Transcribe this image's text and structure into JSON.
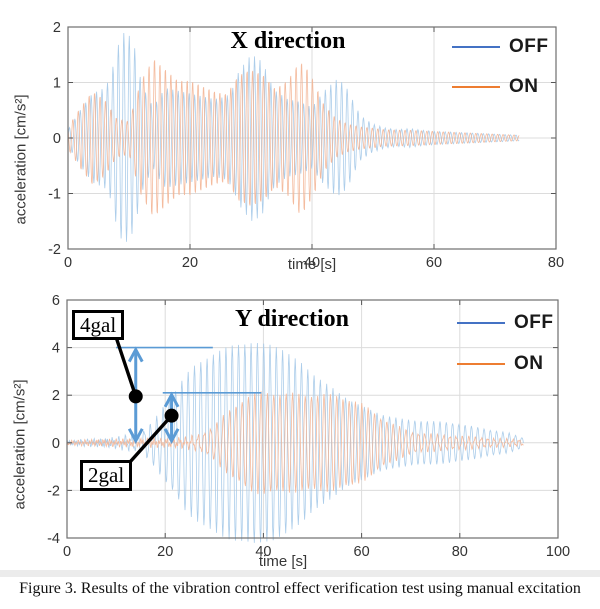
{
  "caption": "Figure 3. Results of the vibration control effect verification test using manual excitation",
  "colors": {
    "off_waveform": "#A3C8E8",
    "on_waveform": "#F3B493",
    "off_legend": "#4472C4",
    "on_legend": "#ED7D31",
    "annotation_blue": "#5B9BD5",
    "grid": "#dcdcdc",
    "axis": "#6f6f6f"
  },
  "charts": [
    {
      "id": "x-direction",
      "title": "X direction",
      "xlabel": "time [s]",
      "ylabel": "acceleration [cm/s²]",
      "legend": [
        {
          "label": "OFF",
          "color": "#4472C4"
        },
        {
          "label": "ON",
          "color": "#ED7D31"
        }
      ],
      "chart_data": {
        "type": "line",
        "x_range": [
          0,
          80
        ],
        "y_range": [
          -2,
          2
        ],
        "x_ticks": [
          0,
          20,
          40,
          60,
          80
        ],
        "y_ticks": [
          -2,
          -1,
          0,
          1,
          2
        ],
        "grid": true,
        "series": [
          {
            "name": "OFF",
            "color": "#A3C8E8",
            "freq_hz": 1.12,
            "phase": 0,
            "end_s": 74,
            "amplitude_envelope": [
              [
                0,
                0.15
              ],
              [
                2,
                0.5
              ],
              [
                4,
                0.8
              ],
              [
                6,
                0.9
              ],
              [
                7,
                1.1
              ],
              [
                8,
                1.6
              ],
              [
                9,
                1.9
              ],
              [
                10,
                1.85
              ],
              [
                11,
                1.6
              ],
              [
                12,
                1.0
              ],
              [
                13,
                0.75
              ],
              [
                14,
                0.55
              ],
              [
                15,
                0.75
              ],
              [
                16,
                0.9
              ],
              [
                18,
                0.85
              ],
              [
                20,
                0.8
              ],
              [
                22,
                0.75
              ],
              [
                24,
                0.7
              ],
              [
                26,
                0.75
              ],
              [
                27,
                0.9
              ],
              [
                28,
                1.2
              ],
              [
                30,
                1.5
              ],
              [
                31,
                1.45
              ],
              [
                32,
                1.35
              ],
              [
                33,
                1.05
              ],
              [
                34,
                0.85
              ],
              [
                36,
                0.7
              ],
              [
                38,
                0.65
              ],
              [
                40,
                0.55
              ],
              [
                42,
                0.85
              ],
              [
                44,
                1.05
              ],
              [
                45,
                1.0
              ],
              [
                46,
                0.85
              ],
              [
                47,
                0.6
              ],
              [
                48,
                0.4
              ],
              [
                50,
                0.25
              ],
              [
                52,
                0.18
              ],
              [
                54,
                0.15
              ],
              [
                56,
                0.17
              ],
              [
                58,
                0.14
              ],
              [
                60,
                0.12
              ],
              [
                64,
                0.1
              ],
              [
                68,
                0.08
              ],
              [
                72,
                0.06
              ],
              [
                74,
                0.05
              ]
            ]
          },
          {
            "name": "ON",
            "color": "#F3B493",
            "freq_hz": 1.12,
            "phase": 2.3,
            "end_s": 74,
            "amplitude_envelope": [
              [
                0,
                0.2
              ],
              [
                2,
                0.55
              ],
              [
                4,
                0.85
              ],
              [
                6,
                0.7
              ],
              [
                8,
                0.35
              ],
              [
                10,
                0.3
              ],
              [
                12,
                1.05
              ],
              [
                14,
                1.45
              ],
              [
                16,
                1.25
              ],
              [
                18,
                1.05
              ],
              [
                20,
                1.05
              ],
              [
                22,
                0.95
              ],
              [
                24,
                0.85
              ],
              [
                26,
                0.8
              ],
              [
                28,
                1.15
              ],
              [
                30,
                1.25
              ],
              [
                32,
                1.15
              ],
              [
                34,
                0.9
              ],
              [
                36,
                1.05
              ],
              [
                38,
                1.4
              ],
              [
                39,
                1.3
              ],
              [
                40,
                1.1
              ],
              [
                42,
                0.6
              ],
              [
                44,
                0.35
              ],
              [
                46,
                0.25
              ],
              [
                48,
                0.2
              ],
              [
                50,
                0.18
              ],
              [
                52,
                0.15
              ],
              [
                56,
                0.14
              ],
              [
                60,
                0.12
              ],
              [
                64,
                0.1
              ],
              [
                68,
                0.08
              ],
              [
                72,
                0.06
              ],
              [
                74,
                0.05
              ]
            ]
          }
        ]
      }
    },
    {
      "id": "y-direction",
      "title": "Y direction",
      "xlabel": "time [s]",
      "ylabel": "acceleration [cm/s²]",
      "legend": [
        {
          "label": "OFF",
          "color": "#4472C4"
        },
        {
          "label": "ON",
          "color": "#ED7D31"
        }
      ],
      "annotations": {
        "labels": [
          {
            "text": "4gal"
          },
          {
            "text": "2gal"
          }
        ],
        "measurements": [
          {
            "label": "4gal",
            "value_gal": 4,
            "arrow_x_s": 14,
            "arrow_from_value": 4.0,
            "arrow_to_value": 0,
            "hline_value": 4.0,
            "hline_span_s": [
              10,
              29.7
            ],
            "dot": [
              14,
              1.95
            ]
          },
          {
            "label": "2gal",
            "value_gal": 2,
            "arrow_x_s": 21.3,
            "arrow_from_value": 2.1,
            "arrow_to_value": 0,
            "hline_value": 2.1,
            "hline_span_s": [
              19.5,
              39.6
            ],
            "dot": [
              21.3,
              1.14
            ]
          }
        ]
      },
      "chart_data": {
        "type": "line",
        "x_range": [
          0,
          100
        ],
        "y_range": [
          -4,
          6
        ],
        "x_ticks": [
          0,
          20,
          40,
          60,
          80,
          100
        ],
        "y_ticks": [
          -4,
          -2,
          0,
          2,
          4,
          6
        ],
        "grid": true,
        "series": [
          {
            "name": "OFF",
            "color": "#A3C8E8",
            "freq_hz": 0.78,
            "phase": 0,
            "end_s": 93,
            "amplitude_envelope": [
              [
                0,
                0.05
              ],
              [
                6,
                0.1
              ],
              [
                10,
                0.15
              ],
              [
                14,
                0.3
              ],
              [
                16,
                0.55
              ],
              [
                18,
                0.95
              ],
              [
                20,
                1.6
              ],
              [
                22,
                2.2
              ],
              [
                24,
                2.8
              ],
              [
                26,
                3.2
              ],
              [
                28,
                3.5
              ],
              [
                30,
                3.75
              ],
              [
                32,
                3.95
              ],
              [
                34,
                4.1
              ],
              [
                36,
                4.15
              ],
              [
                38,
                4.2
              ],
              [
                42,
                4.1
              ],
              [
                44,
                3.9
              ],
              [
                46,
                3.6
              ],
              [
                48,
                3.3
              ],
              [
                50,
                2.9
              ],
              [
                52,
                2.6
              ],
              [
                54,
                2.3
              ],
              [
                56,
                2.0
              ],
              [
                58,
                1.75
              ],
              [
                60,
                1.55
              ],
              [
                62,
                1.35
              ],
              [
                64,
                1.2
              ],
              [
                66,
                1.1
              ],
              [
                68,
                1.0
              ],
              [
                70,
                0.95
              ],
              [
                74,
                0.9
              ],
              [
                78,
                0.85
              ],
              [
                82,
                0.7
              ],
              [
                86,
                0.55
              ],
              [
                90,
                0.4
              ],
              [
                93,
                0.2
              ]
            ],
            "ripple": {
              "freq_hz": 2.2,
              "phase": 0.4,
              "amplitude_envelope": [
                [
                  0,
                  0.06
                ],
                [
                  6,
                  0.1
                ],
                [
                  12,
                  0.13
                ],
                [
                  18,
                  0.1
                ],
                [
                  24,
                  0.06
                ],
                [
                  30,
                  0.03
                ],
                [
                  40,
                  0.02
                ],
                [
                  93,
                  0.02
                ]
              ]
            }
          },
          {
            "name": "ON",
            "color": "#F3B493",
            "freq_hz": 0.78,
            "phase": 2.6,
            "end_s": 93,
            "amplitude_envelope": [
              [
                0,
                0.05
              ],
              [
                10,
                0.08
              ],
              [
                20,
                0.1
              ],
              [
                24,
                0.15
              ],
              [
                27,
                0.3
              ],
              [
                30,
                0.7
              ],
              [
                32,
                1.1
              ],
              [
                34,
                1.5
              ],
              [
                36,
                1.85
              ],
              [
                38,
                2.05
              ],
              [
                40,
                2.1
              ],
              [
                44,
                2.05
              ],
              [
                48,
                2.0
              ],
              [
                52,
                2.0
              ],
              [
                55,
                1.95
              ],
              [
                58,
                1.8
              ],
              [
                60,
                1.6
              ],
              [
                62,
                1.35
              ],
              [
                64,
                1.05
              ],
              [
                66,
                0.8
              ],
              [
                68,
                0.6
              ],
              [
                70,
                0.45
              ],
              [
                73,
                0.35
              ],
              [
                76,
                0.3
              ],
              [
                80,
                0.25
              ],
              [
                84,
                0.2
              ],
              [
                88,
                0.15
              ],
              [
                91,
                0.12
              ],
              [
                93,
                0.1
              ]
            ],
            "ripple": {
              "freq_hz": 2.2,
              "phase": 1.3,
              "amplitude_envelope": [
                [
                  0,
                  0.06
                ],
                [
                  8,
                  0.1
                ],
                [
                  16,
                  0.13
                ],
                [
                  24,
                  0.12
                ],
                [
                  32,
                  0.1
                ],
                [
                  40,
                  0.08
                ],
                [
                  60,
                  0.08
                ],
                [
                  80,
                  0.07
                ],
                [
                  93,
                  0.05
                ]
              ]
            }
          }
        ]
      }
    }
  ]
}
